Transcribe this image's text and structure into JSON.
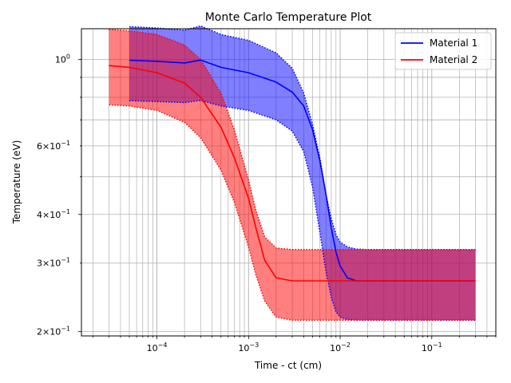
{
  "chart_data": {
    "type": "line",
    "title": "Monte Carlo Temperature Plot",
    "xlabel": "Time - ct (cm)",
    "ylabel": "Temperature (eV)",
    "xscale": "log",
    "yscale": "log",
    "xlim": [
      1.5e-05,
      0.5
    ],
    "ylim": [
      0.195,
      1.2
    ],
    "grid": true,
    "legend": "top-right",
    "x_ticks": [
      {
        "value": 0.0001,
        "label_base": "10",
        "label_exp": "−4"
      },
      {
        "value": 0.001,
        "label_base": "10",
        "label_exp": "−3"
      },
      {
        "value": 0.01,
        "label_base": "10",
        "label_exp": "−2"
      },
      {
        "value": 0.1,
        "label_base": "10",
        "label_exp": "−1"
      }
    ],
    "y_ticks": [
      {
        "value": 1.0,
        "label_base": "10",
        "label_exp": "0"
      },
      {
        "value": 0.6,
        "label_base": "6×10",
        "label_exp": "−1"
      },
      {
        "value": 0.4,
        "label_base": "4×10",
        "label_exp": "−1"
      },
      {
        "value": 0.3,
        "label_base": "3×10",
        "label_exp": "−1"
      },
      {
        "value": 0.2,
        "label_base": "2×10",
        "label_exp": "−1"
      }
    ],
    "series": [
      {
        "name": "Material 1",
        "color": "#0000ff",
        "fill_color": "#0000ff",
        "fill_opacity": 0.5,
        "x": [
          0.0003,
          5e-05,
          0.0001,
          0.0002,
          0.0005,
          0.001,
          0.002,
          0.003,
          0.004,
          0.005,
          0.006,
          0.007,
          0.008,
          0.009,
          0.01,
          0.012,
          0.015,
          0.02,
          0.05,
          0.1,
          0.3
        ],
        "mean": [
          0.997,
          0.996,
          0.99,
          0.98,
          0.955,
          0.925,
          0.875,
          0.825,
          0.76,
          0.66,
          0.55,
          0.45,
          0.37,
          0.32,
          0.295,
          0.275,
          0.27,
          0.27,
          0.27,
          0.27,
          0.27
        ],
        "upper": [
          1.22,
          1.215,
          1.205,
          1.19,
          1.16,
          1.12,
          1.04,
          0.95,
          0.82,
          0.68,
          0.56,
          0.45,
          0.39,
          0.355,
          0.34,
          0.33,
          0.326,
          0.325,
          0.325,
          0.325,
          0.325
        ],
        "lower": [
          0.785,
          0.784,
          0.78,
          0.775,
          0.76,
          0.74,
          0.7,
          0.655,
          0.58,
          0.47,
          0.36,
          0.285,
          0.245,
          0.225,
          0.218,
          0.215,
          0.214,
          0.214,
          0.214,
          0.214,
          0.214
        ]
      },
      {
        "name": "Material 2",
        "color": "#ff0000",
        "fill_color": "#ff0000",
        "fill_opacity": 0.5,
        "x": [
          3e-05,
          5e-05,
          0.0001,
          0.0002,
          0.0003,
          0.0005,
          0.0007,
          0.001,
          0.0012,
          0.0015,
          0.002,
          0.003,
          0.005,
          0.01,
          0.05,
          0.1,
          0.3
        ],
        "mean": [
          0.965,
          0.955,
          0.925,
          0.87,
          0.8,
          0.67,
          0.56,
          0.44,
          0.37,
          0.305,
          0.275,
          0.27,
          0.27,
          0.27,
          0.27,
          0.27,
          0.27
        ],
        "upper": [
          1.195,
          1.185,
          1.16,
          1.09,
          1.0,
          0.82,
          0.66,
          0.49,
          0.41,
          0.35,
          0.328,
          0.325,
          0.325,
          0.325,
          0.325,
          0.325,
          0.325
        ],
        "lower": [
          0.765,
          0.76,
          0.74,
          0.69,
          0.63,
          0.52,
          0.43,
          0.33,
          0.28,
          0.24,
          0.218,
          0.214,
          0.214,
          0.214,
          0.214,
          0.214,
          0.214
        ]
      }
    ]
  }
}
